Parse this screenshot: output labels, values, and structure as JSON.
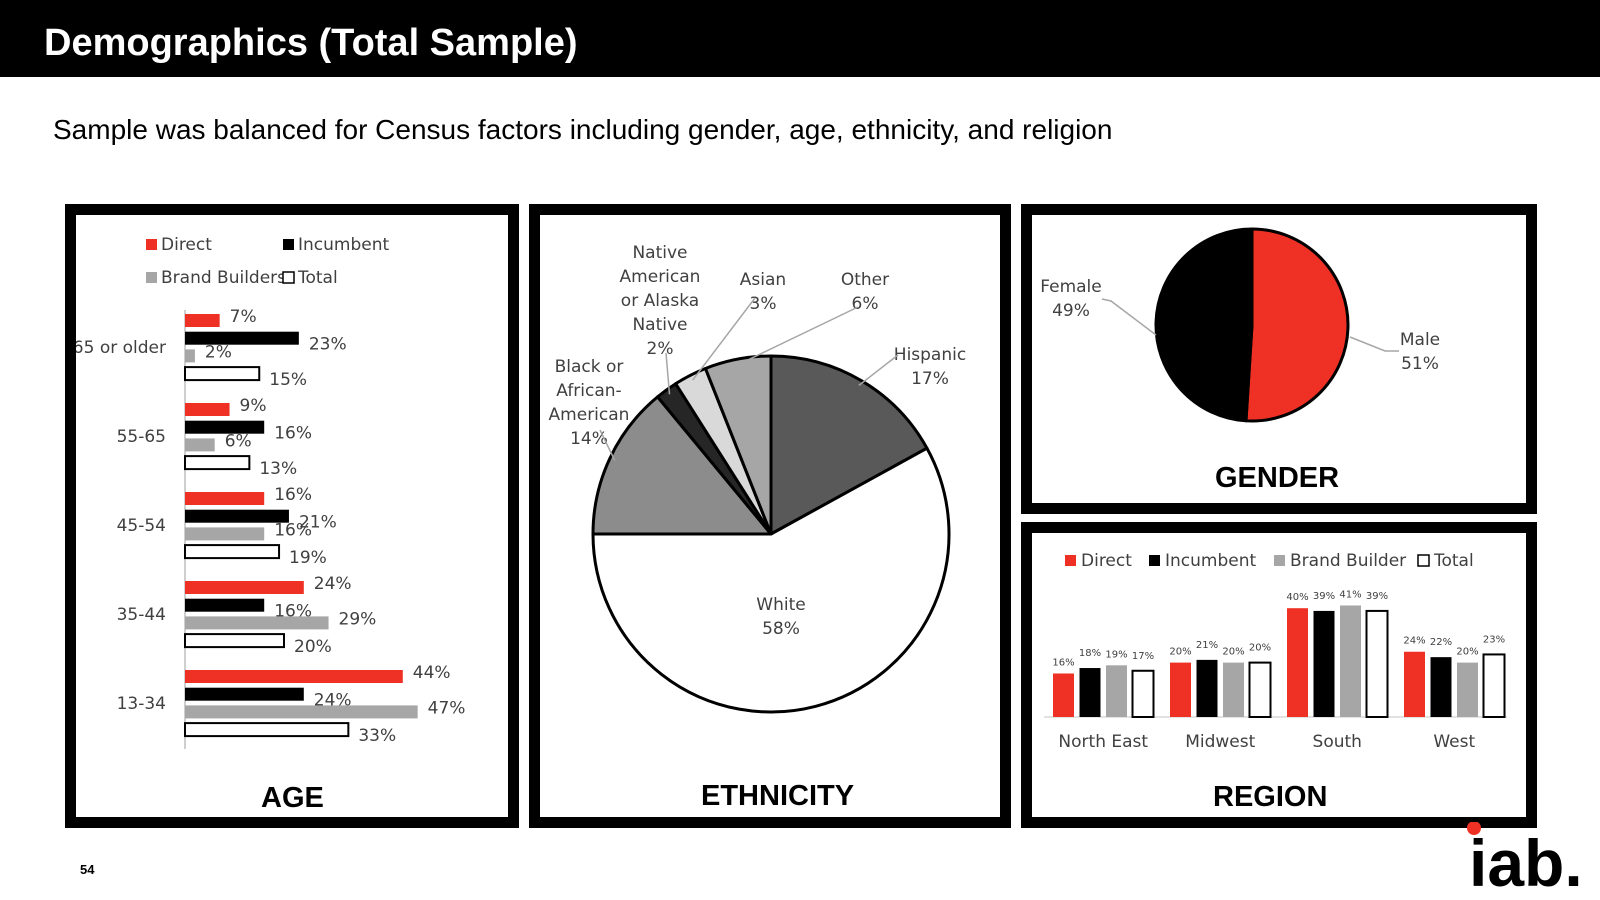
{
  "header": {
    "title": "Demographics (Total Sample)"
  },
  "subtitle": "Sample was balanced for Census factors including gender, age, ethnicity, and religion",
  "footer": {
    "page_number": "54",
    "logo_text": "iab."
  },
  "colors": {
    "direct": "#ee3124",
    "incumbent": "#000000",
    "brand_builders": "#a6a6a6",
    "total": "#ffffff",
    "outline": "#000000"
  },
  "chart_data": [
    {
      "id": "age",
      "type": "bar",
      "orientation": "horizontal",
      "title": "AGE",
      "categories": [
        "65 or older",
        "55-65",
        "45-54",
        "35-44",
        "13-34"
      ],
      "series": [
        {
          "name": "Direct",
          "color": "#ee3124",
          "values": [
            7,
            9,
            16,
            24,
            44
          ],
          "labels": [
            "7%",
            "9%",
            "16%",
            "24%",
            "44%"
          ]
        },
        {
          "name": "Incumbent",
          "color": "#000000",
          "values": [
            23,
            16,
            21,
            16,
            24
          ],
          "labels": [
            "23%",
            "16%",
            "21%",
            "16%",
            "24%"
          ]
        },
        {
          "name": "Brand Builders",
          "color": "#a6a6a6",
          "values": [
            2,
            6,
            16,
            29,
            47
          ],
          "labels": [
            "2%",
            "6%",
            "16%",
            "29%",
            "47%"
          ]
        },
        {
          "name": "Total",
          "color": "#ffffff",
          "values": [
            15,
            13,
            19,
            20,
            33
          ],
          "labels": [
            "15%",
            "13%",
            "19%",
            "20%",
            "33%"
          ]
        }
      ]
    },
    {
      "id": "ethnicity",
      "type": "pie",
      "title": "ETHNICITY",
      "slices": [
        {
          "label": "Hispanic",
          "value": 17,
          "pct": "17%",
          "color": "#595959"
        },
        {
          "label": "White",
          "value": 58,
          "pct": "58%",
          "color": "#ffffff"
        },
        {
          "label": "Black or African-American",
          "value": 14,
          "pct": "14%",
          "color": "#8c8c8c"
        },
        {
          "label": "Native American or Alaska Native",
          "value": 2,
          "pct": "2%",
          "color": "#262626"
        },
        {
          "label": "Asian",
          "value": 3,
          "pct": "3%",
          "color": "#d9d9d9"
        },
        {
          "label": "Other",
          "value": 6,
          "pct": "6%",
          "color": "#a6a6a6"
        }
      ]
    },
    {
      "id": "gender",
      "type": "pie",
      "title": "GENDER",
      "slices": [
        {
          "label": "Male",
          "value": 51,
          "pct": "51%",
          "color": "#ee3124"
        },
        {
          "label": "Female",
          "value": 49,
          "pct": "49%",
          "color": "#000000"
        }
      ]
    },
    {
      "id": "region",
      "type": "bar",
      "orientation": "vertical",
      "title": "REGION",
      "categories": [
        "North East",
        "Midwest",
        "South",
        "West"
      ],
      "series": [
        {
          "name": "Direct",
          "color": "#ee3124",
          "values": [
            16,
            20,
            40,
            24
          ],
          "labels": [
            "16%",
            "20%",
            "40%",
            "24%"
          ]
        },
        {
          "name": "Incumbent",
          "color": "#000000",
          "values": [
            18,
            21,
            39,
            22
          ],
          "labels": [
            "18%",
            "21%",
            "39%",
            "22%"
          ]
        },
        {
          "name": "Brand Builder",
          "color": "#a6a6a6",
          "values": [
            19,
            20,
            41,
            20
          ],
          "labels": [
            "19%",
            "20%",
            "41%",
            "20%"
          ]
        },
        {
          "name": "Total",
          "color": "#ffffff",
          "values": [
            17,
            20,
            39,
            23
          ],
          "labels": [
            "17%",
            "20%",
            "39%",
            "23%"
          ]
        }
      ]
    }
  ]
}
